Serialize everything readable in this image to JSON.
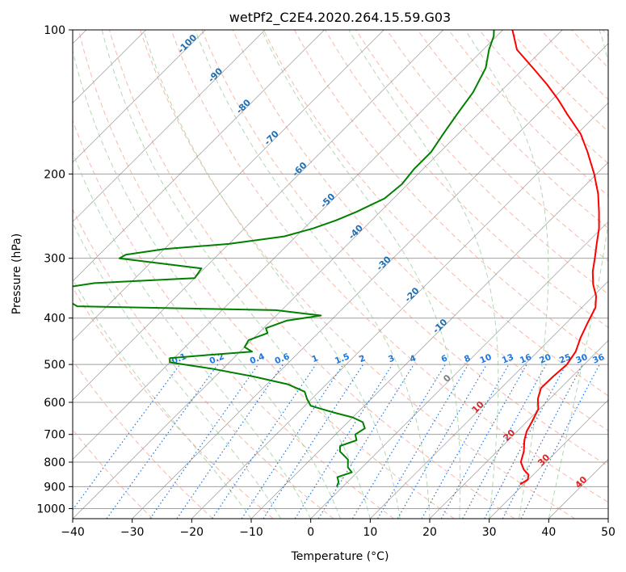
{
  "chart_data": {
    "type": "line",
    "subtype": "skew-t log-p",
    "title": "wetPf2_C2E4.2020.264.15.59.G03",
    "xlabel": "Temperature (°C)",
    "ylabel": "Pressure (hPa)",
    "xlim": [
      -40,
      50
    ],
    "ylim": [
      1050,
      100
    ],
    "y_scale": "log",
    "x_ticks": [
      -40,
      -30,
      -20,
      -10,
      0,
      10,
      20,
      30,
      40,
      50
    ],
    "x_tick_labels": [
      "−40",
      "−30",
      "−20",
      "−10",
      "0",
      "10",
      "20",
      "30",
      "40",
      "50"
    ],
    "y_ticks": [
      100,
      200,
      300,
      400,
      500,
      600,
      700,
      800,
      900,
      1000
    ],
    "y_tick_labels": [
      "100",
      "200",
      "300",
      "400",
      "500",
      "600",
      "700",
      "800",
      "900",
      "1000"
    ],
    "grid": true,
    "series": [
      {
        "color": "#ff0000",
        "points": [
          [
            890,
            29.4
          ],
          [
            870,
            29.9
          ],
          [
            850,
            29.2
          ],
          [
            830,
            27.6
          ],
          [
            800,
            25.8
          ],
          [
            760,
            24.5
          ],
          [
            720,
            22.7
          ],
          [
            690,
            21.6
          ],
          [
            660,
            20.9
          ],
          [
            620,
            19.8
          ],
          [
            590,
            18.0
          ],
          [
            560,
            16.7
          ],
          [
            530,
            16.8
          ],
          [
            500,
            17.1
          ],
          [
            470,
            16.4
          ],
          [
            440,
            14.9
          ],
          [
            410,
            13.6
          ],
          [
            380,
            12.3
          ],
          [
            360,
            10.5
          ],
          [
            340,
            8.0
          ],
          [
            320,
            5.8
          ],
          [
            300,
            3.9
          ],
          [
            280,
            1.8
          ],
          [
            260,
            -0.4
          ],
          [
            240,
            -3.2
          ],
          [
            220,
            -6.4
          ],
          [
            200,
            -10.4
          ],
          [
            180,
            -15.2
          ],
          [
            165,
            -19.4
          ],
          [
            150,
            -25.0
          ],
          [
            140,
            -28.9
          ],
          [
            130,
            -33.4
          ],
          [
            120,
            -38.6
          ],
          [
            110,
            -44.3
          ],
          [
            100,
            -48.4
          ]
        ]
      },
      {
        "color": "#008000",
        "points": [
          [
            900,
            -1.0
          ],
          [
            880,
            -1.5
          ],
          [
            860,
            -2.5
          ],
          [
            840,
            -0.9
          ],
          [
            820,
            -2.4
          ],
          [
            790,
            -3.7
          ],
          [
            760,
            -6.4
          ],
          [
            740,
            -7.3
          ],
          [
            720,
            -5.5
          ],
          [
            700,
            -6.7
          ],
          [
            680,
            -6.1
          ],
          [
            660,
            -7.5
          ],
          [
            645,
            -10.0
          ],
          [
            630,
            -14.0
          ],
          [
            610,
            -19.0
          ],
          [
            590,
            -20.8
          ],
          [
            570,
            -22.4
          ],
          [
            550,
            -26.5
          ],
          [
            530,
            -33.5
          ],
          [
            510,
            -42.0
          ],
          [
            495,
            -50.0
          ],
          [
            485,
            -50.7
          ],
          [
            478,
            -45.0
          ],
          [
            470,
            -38.0
          ],
          [
            460,
            -40.0
          ],
          [
            445,
            -40.5
          ],
          [
            430,
            -38.5
          ],
          [
            420,
            -39.6
          ],
          [
            405,
            -37.4
          ],
          [
            395,
            -32.5
          ],
          [
            385,
            -41.0
          ],
          [
            378,
            -75.0
          ],
          [
            370,
            -77.0
          ],
          [
            360,
            -79.0
          ],
          [
            345,
            -80.0
          ],
          [
            338,
            -76.0
          ],
          [
            330,
            -60.0
          ],
          [
            315,
            -60.5
          ],
          [
            300,
            -76.0
          ],
          [
            295,
            -75.5
          ],
          [
            287,
            -70.0
          ],
          [
            280,
            -60.0
          ],
          [
            270,
            -52.0
          ],
          [
            260,
            -48.5
          ],
          [
            250,
            -46.0
          ],
          [
            240,
            -44.0
          ],
          [
            225,
            -41.5
          ],
          [
            210,
            -41.0
          ],
          [
            195,
            -41.5
          ],
          [
            180,
            -41.5
          ],
          [
            165,
            -42.5
          ],
          [
            150,
            -43.5
          ],
          [
            135,
            -44.5
          ],
          [
            120,
            -46.5
          ],
          [
            110,
            -49.0
          ],
          [
            103,
            -50.5
          ],
          [
            100,
            -51.5
          ]
        ]
      }
    ],
    "isotherm_spacing": 10,
    "dry_adiabat_labels": [
      "-100",
      "-90",
      "-80",
      "-70",
      "-60",
      "-50",
      "-40",
      "-30",
      "-20",
      "-10",
      "0",
      "10",
      "20",
      "30",
      "40"
    ],
    "mixing_ratio_labels": [
      "0.1",
      "0.2",
      "0.4",
      "0.6",
      "1",
      "1.5",
      "2",
      "3",
      "4",
      "6",
      "8",
      "10",
      "13",
      "16",
      "20",
      "25",
      "30",
      "36"
    ],
    "colors": {
      "temperature": "#ff0000",
      "dewpoint": "#008000",
      "dry_adiabat": "#f08060",
      "moist_adiabat": "#90c890",
      "mixing_ratio": "#1f77dd",
      "isotherm": "#808080",
      "isobar": "#a0a0a0",
      "warm_label": "#d62728",
      "cold_label": "#1f6fb4",
      "zero_label": "#808080"
    }
  }
}
